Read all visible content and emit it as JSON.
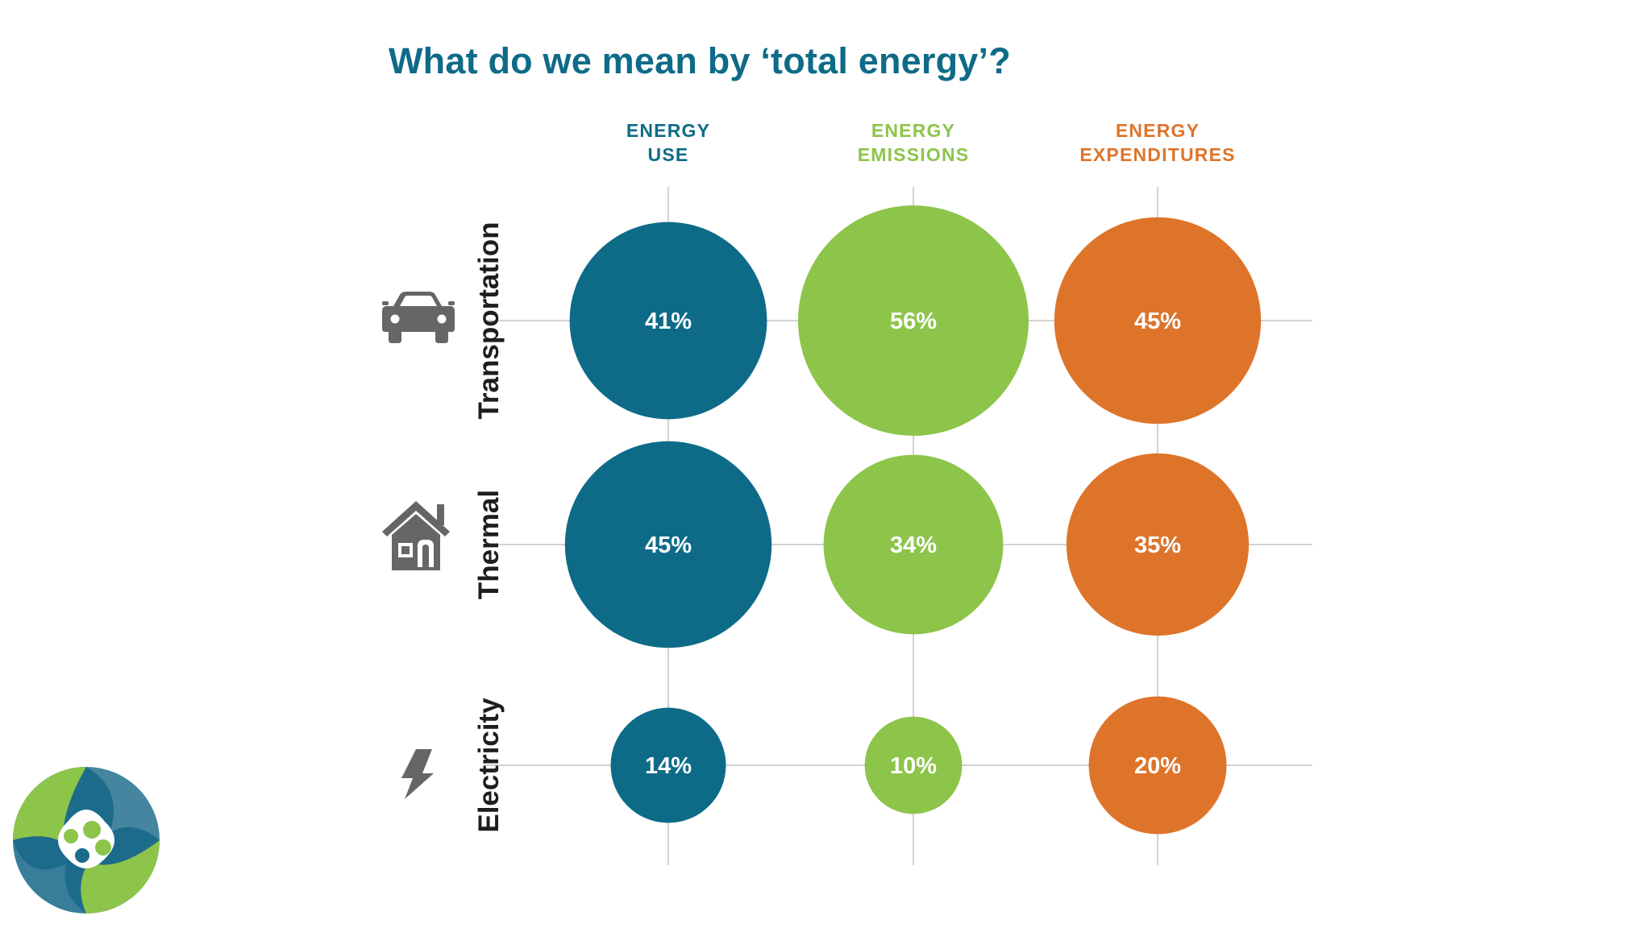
{
  "title": "What do we mean by ‘total energy’?",
  "colors": {
    "title": "#0e6b88",
    "use": "#0e6b88",
    "emissions": "#8dc44a",
    "expenditures": "#de742a",
    "grid": "#d2d2d2",
    "icon": "#666666"
  },
  "chart_data": {
    "type": "bubble-matrix",
    "title": "What do we mean by ‘total energy’?",
    "columns": [
      {
        "key": "use",
        "label_lines": [
          "ENERGY",
          "USE"
        ]
      },
      {
        "key": "emissions",
        "label_lines": [
          "ENERGY",
          "EMISSIONS"
        ]
      },
      {
        "key": "expenditures",
        "label_lines": [
          "ENERGY",
          "EXPENDITURES"
        ]
      }
    ],
    "rows": [
      {
        "label": "Transportation",
        "icon": "car-icon",
        "values": [
          41,
          56,
          45
        ]
      },
      {
        "label": "Thermal",
        "icon": "house-icon",
        "values": [
          45,
          34,
          35
        ]
      },
      {
        "label": "Electricity",
        "icon": "lightning-bolt-icon",
        "values": [
          14,
          10,
          20
        ]
      }
    ],
    "unit": "%",
    "grid": true
  },
  "logo": {
    "name": "organization-logo"
  }
}
